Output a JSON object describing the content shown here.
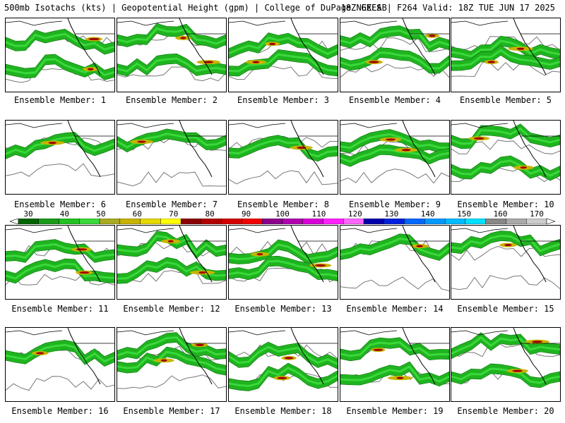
{
  "header": {
    "left": "500mb Isotachs (kts) | Geopotential Height (gpm) | College of DuPage NEXLAB",
    "right": "18Z GEFS | F264 Valid: 18Z TUE JUN 17 2025"
  },
  "colorbar": {
    "labels": [
      "30",
      "40",
      "50",
      "60",
      "70",
      "80",
      "90",
      "100",
      "110",
      "120",
      "130",
      "140",
      "150",
      "160",
      "170"
    ],
    "colors": [
      "#006400",
      "#1a9a1a",
      "#22c022",
      "#3ad83a",
      "#aaaa22",
      "#c8b400",
      "#e6d800",
      "#ffff00",
      "#8b0000",
      "#b20000",
      "#d20000",
      "#f00000",
      "#8b008b",
      "#b000b0",
      "#d800d8",
      "#ff22ff",
      "#ff66ff",
      "#0000aa",
      "#0022dd",
      "#0066ff",
      "#0099ff",
      "#00bbff",
      "#00e0ff",
      "#888888",
      "#aaaaaa",
      "#cccccc"
    ]
  },
  "members": [
    {
      "label": "Ensemble Member: 1"
    },
    {
      "label": "Ensemble Member: 2"
    },
    {
      "label": "Ensemble Member: 3"
    },
    {
      "label": "Ensemble Member: 4"
    },
    {
      "label": "Ensemble Member: 5"
    },
    {
      "label": "Ensemble Member: 6"
    },
    {
      "label": "Ensemble Member: 7"
    },
    {
      "label": "Ensemble Member: 8"
    },
    {
      "label": "Ensemble Member: 9"
    },
    {
      "label": "Ensemble Member: 10"
    },
    {
      "label": "Ensemble Member: 11"
    },
    {
      "label": "Ensemble Member: 12"
    },
    {
      "label": "Ensemble Member: 13"
    },
    {
      "label": "Ensemble Member: 14"
    },
    {
      "label": "Ensemble Member: 15"
    },
    {
      "label": "Ensemble Member: 16"
    },
    {
      "label": "Ensemble Member: 17"
    },
    {
      "label": "Ensemble Member: 18"
    },
    {
      "label": "Ensemble Member: 19"
    },
    {
      "label": "Ensemble Member: 20"
    }
  ]
}
